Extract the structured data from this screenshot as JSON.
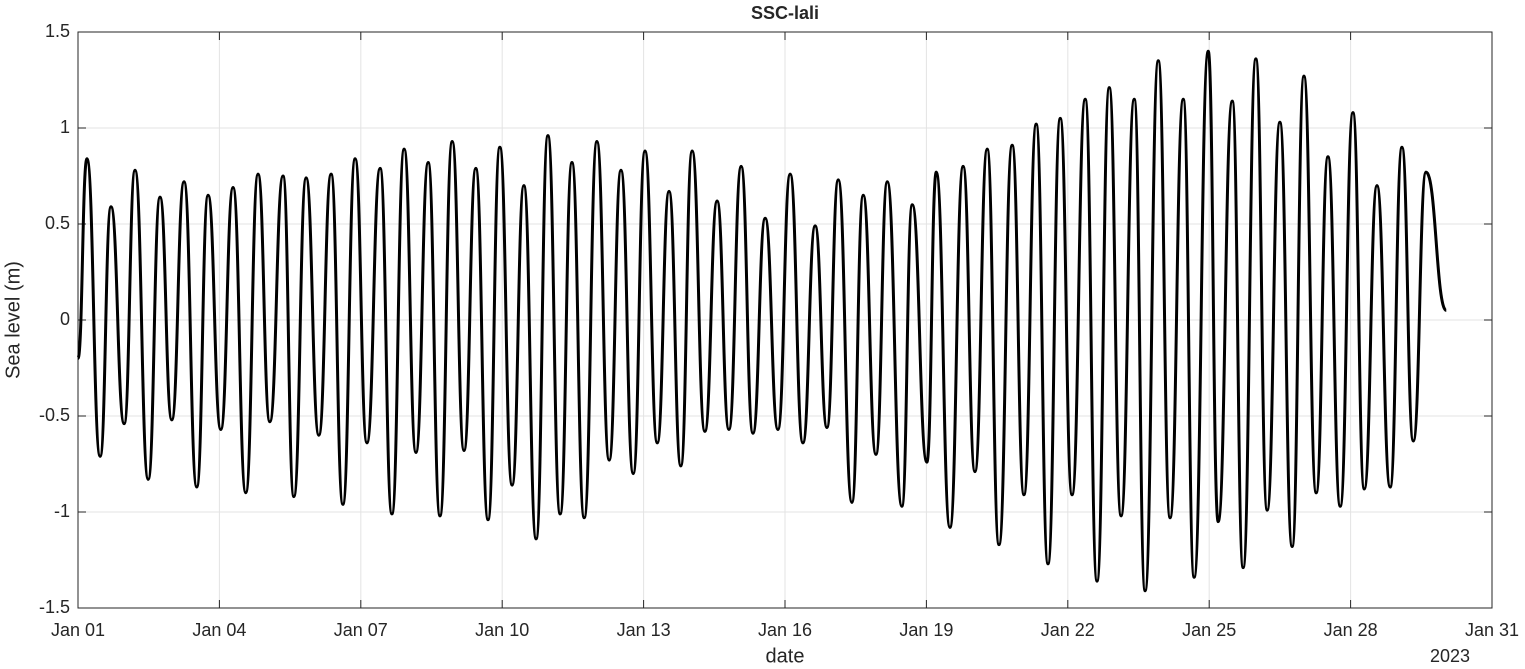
{
  "chart_data": {
    "type": "line",
    "title": "SSC-lali",
    "xlabel": "date",
    "ylabel": "Sea level (m)",
    "year_label": "2023",
    "color": "#000000",
    "grid": true,
    "xlim": [
      0,
      30
    ],
    "ylim": [
      -1.5,
      1.5
    ],
    "xticks": [
      {
        "value": 0,
        "label": "Jan 01"
      },
      {
        "value": 3,
        "label": "Jan 04"
      },
      {
        "value": 6,
        "label": "Jan 07"
      },
      {
        "value": 9,
        "label": "Jan 10"
      },
      {
        "value": 12,
        "label": "Jan 13"
      },
      {
        "value": 15,
        "label": "Jan 16"
      },
      {
        "value": 18,
        "label": "Jan 19"
      },
      {
        "value": 21,
        "label": "Jan 22"
      },
      {
        "value": 24,
        "label": "Jan 25"
      },
      {
        "value": 27,
        "label": "Jan 28"
      },
      {
        "value": 30,
        "label": "Jan 31"
      }
    ],
    "yticks": [
      -1.5,
      -1,
      -0.5,
      0,
      0.5,
      1,
      1.5
    ],
    "x": [
      0.0,
      0.19,
      0.47,
      0.7,
      0.98,
      1.21,
      1.49,
      1.74,
      1.99,
      2.25,
      2.52,
      2.76,
      3.03,
      3.29,
      3.56,
      3.82,
      4.07,
      4.35,
      4.58,
      4.84,
      5.11,
      5.37,
      5.62,
      5.88,
      6.13,
      6.41,
      6.66,
      6.92,
      7.17,
      7.43,
      7.68,
      7.94,
      8.19,
      8.44,
      8.7,
      8.95,
      9.21,
      9.46,
      9.72,
      9.97,
      10.23,
      10.48,
      10.74,
      11.01,
      11.27,
      11.52,
      11.78,
      12.03,
      12.29,
      12.54,
      12.79,
      13.03,
      13.3,
      13.56,
      13.81,
      14.07,
      14.32,
      14.58,
      14.85,
      15.11,
      15.38,
      15.64,
      15.89,
      16.13,
      16.42,
      16.66,
      16.93,
      17.17,
      17.48,
      17.7,
      18.01,
      18.21,
      18.5,
      18.78,
      19.03,
      19.29,
      19.54,
      19.82,
      20.07,
      20.33,
      20.58,
      20.84,
      21.09,
      21.37,
      21.62,
      21.88,
      22.13,
      22.41,
      22.64,
      22.92,
      23.17,
      23.45,
      23.68,
      23.98,
      24.19,
      24.49,
      24.72,
      24.99,
      25.23,
      25.5,
      25.76,
      26.01,
      26.27,
      26.52,
      26.78,
      27.05,
      27.29,
      27.56,
      27.84,
      28.09,
      28.33,
      28.6,
      29.03
    ],
    "values": [
      -0.2,
      0.84,
      -0.71,
      0.59,
      -0.54,
      0.78,
      -0.83,
      0.64,
      -0.52,
      0.72,
      -0.87,
      0.65,
      -0.57,
      0.69,
      -0.9,
      0.76,
      -0.53,
      0.75,
      -0.92,
      0.74,
      -0.6,
      0.76,
      -0.96,
      0.84,
      -0.64,
      0.79,
      -1.01,
      0.89,
      -0.69,
      0.82,
      -1.02,
      0.93,
      -0.68,
      0.79,
      -1.04,
      0.9,
      -0.86,
      0.7,
      -1.14,
      0.96,
      -1.01,
      0.82,
      -1.03,
      0.93,
      -0.73,
      0.78,
      -0.8,
      0.88,
      -0.64,
      0.67,
      -0.76,
      0.88,
      -0.58,
      0.62,
      -0.57,
      0.8,
      -0.59,
      0.53,
      -0.57,
      0.76,
      -0.64,
      0.49,
      -0.56,
      0.73,
      -0.95,
      0.65,
      -0.7,
      0.72,
      -0.97,
      0.6,
      -0.74,
      0.77,
      -1.08,
      0.8,
      -0.79,
      0.89,
      -1.17,
      0.91,
      -0.91,
      1.02,
      -1.27,
      1.05,
      -0.91,
      1.15,
      -1.36,
      1.21,
      -1.02,
      1.15,
      -1.41,
      1.35,
      -1.03,
      1.15,
      -1.34,
      1.4,
      -1.05,
      1.14,
      -1.29,
      1.36,
      -0.99,
      1.03,
      -1.18,
      1.27,
      -0.9,
      0.85,
      -0.97,
      1.08,
      -0.88,
      0.7,
      -0.87,
      0.9,
      -0.63,
      0.77,
      0.05
    ]
  }
}
